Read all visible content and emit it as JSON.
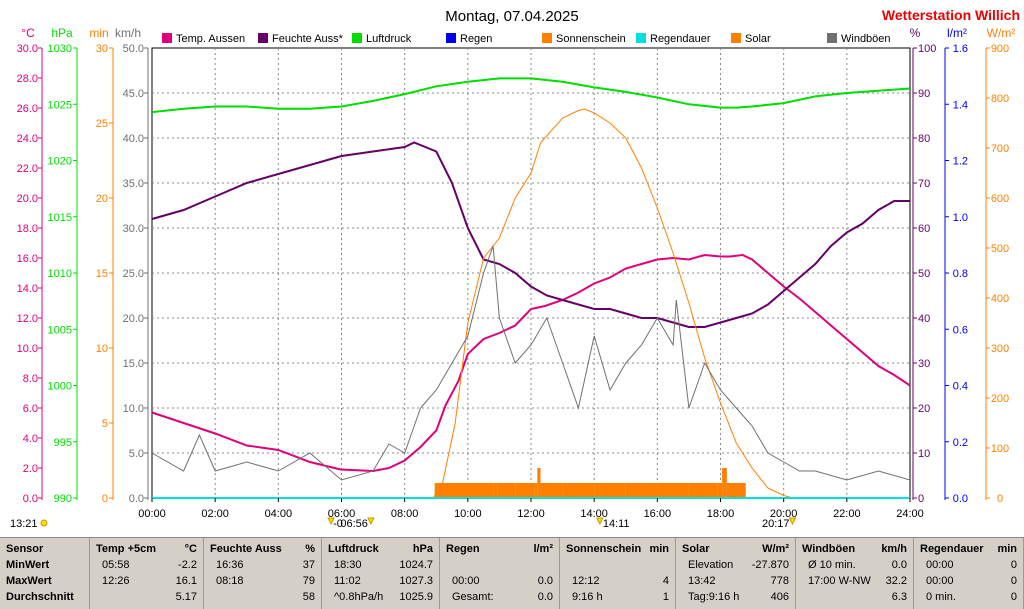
{
  "title": "Montag, 07.04.2025",
  "station": "Wetterstation Willich",
  "units_left": [
    "°C",
    "hPa",
    "min",
    "km/h"
  ],
  "units_right": [
    "%",
    "l/m²",
    "W/m²"
  ],
  "legend": [
    {
      "label": "Temp. Aussen",
      "color": "#e0007c"
    },
    {
      "label": "Feuchte Auss*",
      "color": "#660066"
    },
    {
      "label": "Luftdruck",
      "color": "#00dd00"
    },
    {
      "label": "Regen",
      "color": "#0000ee"
    },
    {
      "label": "Sonnenschein",
      "color": "#ff8000"
    },
    {
      "label": "Regendauer",
      "color": "#00e0e0"
    },
    {
      "label": "Solar",
      "color": "#ff8000"
    },
    {
      "label": "Windböen",
      "color": "#707070"
    }
  ],
  "axes": {
    "temp": {
      "color": "#e0007c",
      "min": 0,
      "max": 30,
      "ticks": [
        "0.0",
        "2.0",
        "4.0",
        "6.0",
        "8.0",
        "10.0",
        "12.0",
        "14.0",
        "16.0",
        "18.0",
        "20.0",
        "22.0",
        "24.0",
        "26.0",
        "28.0",
        "30.0"
      ]
    },
    "pressure": {
      "color": "#00dd00",
      "min": 990,
      "max": 1030,
      "ticks": [
        "990",
        "995",
        "1000",
        "1005",
        "1010",
        "1015",
        "1020",
        "1025",
        "1030"
      ]
    },
    "sunmin": {
      "color": "#ff8000",
      "min": 0,
      "max": 30,
      "ticks": [
        "0",
        "5",
        "10",
        "15",
        "20",
        "25",
        "30"
      ]
    },
    "wind": {
      "color": "#707070",
      "min": 0,
      "max": 50,
      "ticks": [
        "0.0",
        "5.0",
        "10.0",
        "15.0",
        "20.0",
        "25.0",
        "30.0",
        "35.0",
        "40.0",
        "45.0",
        "50.0"
      ]
    },
    "humidity": {
      "color": "#660066",
      "min": 0,
      "max": 100,
      "ticks": [
        "0",
        "10",
        "20",
        "30",
        "40",
        "50",
        "60",
        "70",
        "80",
        "90",
        "100"
      ]
    },
    "rain": {
      "color": "#0000ee",
      "min": 0,
      "max": 1.6,
      "ticks": [
        "0.0",
        "0.2",
        "0.4",
        "0.6",
        "0.8",
        "1.0",
        "1.2",
        "1.4",
        "1.6"
      ]
    },
    "solar": {
      "color": "#ff8000",
      "min": 0,
      "max": 900,
      "ticks": [
        "0",
        "100",
        "200",
        "300",
        "400",
        "500",
        "600",
        "700",
        "800",
        "900"
      ]
    }
  },
  "time_ticks": [
    "00:00",
    "02:00",
    "04:00",
    "06:00",
    "08:00",
    "10:00",
    "12:00",
    "14:00",
    "16:00",
    "18:00",
    "20:00",
    "22:00",
    "24:00"
  ],
  "sun_markers": {
    "sunrise": "06:56",
    "noon": "14:11",
    "sunset": "20:17",
    "left_time": "13:21",
    "left_cut": "-0"
  },
  "chart_data": {
    "type": "line",
    "x_unit": "hours",
    "series": [
      {
        "name": "Temp. Aussen",
        "axis": "temp",
        "color": "#e0007c",
        "x": [
          0,
          1,
          2,
          3,
          4,
          5,
          5.97,
          7,
          7.5,
          8,
          8.5,
          9,
          9.3,
          9.7,
          10,
          10.5,
          11,
          11.5,
          12,
          12.44,
          13,
          13.5,
          14,
          14.5,
          15,
          15.5,
          16,
          16.5,
          17,
          17.5,
          18,
          18.3,
          18.7,
          19,
          19.5,
          20,
          20.5,
          21,
          21.5,
          22,
          22.5,
          23,
          23.5,
          24
        ],
        "y": [
          5.7,
          5.0,
          4.3,
          3.5,
          3.2,
          2.4,
          1.9,
          1.8,
          2.0,
          2.5,
          3.4,
          4.5,
          6.2,
          7.8,
          9.6,
          10.6,
          11.0,
          11.5,
          12.6,
          12.8,
          13.2,
          13.7,
          14.3,
          14.7,
          15.3,
          15.6,
          15.9,
          16.0,
          15.9,
          16.2,
          16.1,
          16.1,
          16.2,
          15.9,
          15.0,
          14.1,
          13.3,
          12.4,
          11.5,
          10.6,
          9.7,
          8.8,
          8.2,
          7.5
        ]
      },
      {
        "name": "Feuchte Auss*",
        "axis": "humidity",
        "color": "#660066",
        "x": [
          0,
          1,
          2,
          3,
          4,
          5,
          6,
          7,
          8,
          8.3,
          9,
          9.5,
          10,
          10.5,
          11,
          11.5,
          12,
          12.5,
          13,
          13.5,
          14,
          14.5,
          15,
          15.5,
          16,
          16.5,
          17,
          17.5,
          18,
          18.5,
          19,
          19.5,
          20,
          20.5,
          21,
          21.5,
          22,
          22.5,
          23,
          23.5,
          24
        ],
        "y": [
          62,
          64,
          67,
          70,
          72,
          74,
          76,
          77,
          78,
          79,
          77,
          70,
          60,
          53,
          52,
          50,
          47,
          45,
          44,
          43,
          42,
          42,
          41,
          40,
          40,
          39,
          38,
          38,
          39,
          40,
          41,
          43,
          46,
          49,
          52,
          56,
          59,
          61,
          64,
          66,
          66
        ]
      },
      {
        "name": "Luftdruck",
        "axis": "pressure",
        "color": "#00dd00",
        "x": [
          0,
          1,
          2,
          3,
          4,
          5,
          6,
          7,
          8,
          9,
          10,
          11,
          11.03,
          12,
          13,
          14,
          15,
          16,
          17,
          18,
          18.5,
          19,
          20,
          21,
          22,
          23,
          24
        ],
        "y": [
          1024.3,
          1024.6,
          1024.8,
          1024.8,
          1024.6,
          1024.6,
          1024.8,
          1025.3,
          1025.9,
          1026.6,
          1027.0,
          1027.3,
          1027.3,
          1027.3,
          1027.0,
          1026.5,
          1026.1,
          1025.6,
          1025.0,
          1024.7,
          1024.7,
          1024.8,
          1025.1,
          1025.7,
          1026.0,
          1026.2,
          1026.4
        ]
      },
      {
        "name": "Solar",
        "axis": "solar",
        "color": "#ff8000",
        "x": [
          0,
          8.9,
          9.2,
          9.6,
          10,
          10.5,
          11,
          11.5,
          12,
          12.3,
          13,
          13.5,
          13.7,
          14,
          14.5,
          15,
          15.5,
          16,
          16.5,
          17,
          17.5,
          18,
          18.5,
          19,
          19.5,
          20,
          20.3,
          24
        ],
        "y": [
          0,
          0,
          30,
          150,
          350,
          480,
          520,
          600,
          650,
          710,
          760,
          775,
          778,
          770,
          750,
          720,
          660,
          580,
          490,
          390,
          280,
          190,
          110,
          60,
          20,
          5,
          0,
          0
        ]
      },
      {
        "name": "Windböen",
        "axis": "wind",
        "color": "#707070",
        "x": [
          0,
          1,
          1.5,
          2,
          3,
          4,
          5,
          6,
          7,
          7.5,
          8,
          8.5,
          9,
          9.5,
          10,
          10.5,
          10.8,
          11,
          11.5,
          12,
          12.5,
          13,
          13.5,
          14,
          14.5,
          15,
          15.5,
          16,
          16.5,
          16.6,
          17,
          17.5,
          18,
          18.5,
          19,
          19.5,
          20,
          20.5,
          21,
          22,
          23,
          24
        ],
        "y": [
          5,
          3,
          7,
          3,
          4,
          3,
          5,
          2,
          3,
          6,
          5,
          10,
          12,
          15,
          18,
          25,
          28,
          20,
          15,
          17,
          20,
          15,
          10,
          18,
          12,
          15,
          17,
          20,
          17,
          22,
          10,
          15,
          12,
          10,
          8,
          5,
          4,
          3,
          3,
          2,
          3,
          2
        ]
      },
      {
        "name": "Sonnenschein",
        "axis": "sunmin",
        "color": "#ff8000",
        "x": [
          8.95,
          10.8,
          10.95,
          11.5,
          12.1,
          12.2,
          12.3,
          13,
          14,
          15,
          16,
          17,
          17.9,
          18.05,
          18.2,
          18.8
        ],
        "y": [
          1,
          1,
          1,
          1,
          1,
          2,
          1,
          1,
          1,
          1,
          1,
          1,
          1,
          2,
          1,
          1
        ]
      },
      {
        "name": "Regen",
        "axis": "rain",
        "color": "#0000ee",
        "x": [
          0,
          24
        ],
        "y": [
          0,
          0
        ]
      },
      {
        "name": "Regendauer",
        "axis": "rain",
        "color": "#00e0e0",
        "x": [
          0,
          24
        ],
        "y": [
          0,
          0
        ]
      }
    ]
  },
  "stats": {
    "columns": [
      {
        "title": "Sensor",
        "unit": "",
        "rows": [
          "MinWert",
          "MaxWert",
          "Durchschnitt"
        ]
      },
      {
        "title": "Temp +5cm",
        "unit": "°C",
        "rows": [
          [
            "05:58",
            "-2.2"
          ],
          [
            "12:26",
            "16.1"
          ],
          [
            "",
            "5.17"
          ]
        ]
      },
      {
        "title": "Feuchte Auss",
        "unit": "%",
        "rows": [
          [
            "16:36",
            "37"
          ],
          [
            "08:18",
            "79"
          ],
          [
            "",
            "58"
          ]
        ]
      },
      {
        "title": "Luftdruck",
        "unit": "hPa",
        "rows": [
          [
            "18:30",
            "1024.7"
          ],
          [
            "11:02",
            "1027.3"
          ],
          [
            "^0.8hPa/h",
            "1025.9"
          ]
        ]
      },
      {
        "title": "Regen",
        "unit": "l/m²",
        "rows": [
          [
            "",
            ""
          ],
          [
            "00:00",
            "0.0"
          ],
          [
            "Gesamt:",
            "0.0"
          ]
        ]
      },
      {
        "title": "Sonnenschein",
        "unit": "min",
        "rows": [
          [
            "",
            ""
          ],
          [
            "12:12",
            "4"
          ],
          [
            "9:16 h",
            "1"
          ]
        ]
      },
      {
        "title": "Solar",
        "unit": "W/m²",
        "rows": [
          [
            "Elevation",
            "-27.870"
          ],
          [
            "13:42",
            "778"
          ],
          [
            "Tag:9:16 h",
            "406"
          ]
        ]
      },
      {
        "title": "Windböen",
        "unit": "km/h",
        "rows": [
          [
            "Ø 10 min.",
            "0.0"
          ],
          [
            "17:00   W-NW",
            "32.2"
          ],
          [
            "",
            "6.3"
          ]
        ]
      },
      {
        "title": "Regendauer",
        "unit": "min",
        "rows": [
          [
            "00:00",
            "0"
          ],
          [
            "00:00",
            "0"
          ],
          [
            "0 min.",
            "0"
          ]
        ]
      }
    ]
  }
}
